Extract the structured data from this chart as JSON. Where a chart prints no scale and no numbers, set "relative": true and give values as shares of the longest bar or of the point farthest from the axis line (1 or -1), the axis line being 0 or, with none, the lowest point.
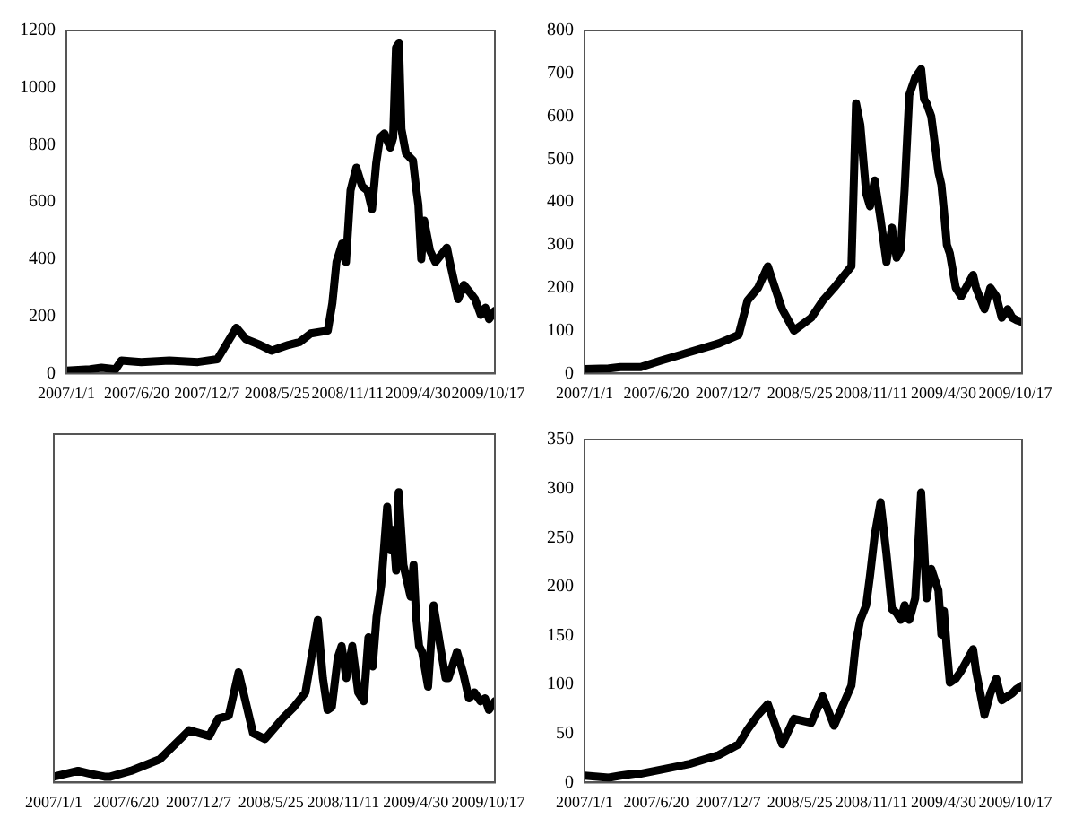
{
  "chart_data": [
    {
      "type": "line",
      "color": "#000000",
      "x": [
        "2007-01-01",
        "2007-02-27",
        "2007-03-27",
        "2007-04-30",
        "2007-05-14",
        "2007-07-01",
        "2007-09-07",
        "2007-11-15",
        "2008-01-01",
        "2008-01-22",
        "2008-02-16",
        "2008-03-10",
        "2008-04-13",
        "2008-05-11",
        "2008-06-21",
        "2008-07-18",
        "2008-08-14",
        "2008-09-24",
        "2008-10-05",
        "2008-10-15",
        "2008-10-29",
        "2008-11-07",
        "2008-11-18",
        "2008-12-02",
        "2008-12-16",
        "2008-12-29",
        "2009-01-09",
        "2009-01-19",
        "2009-01-28",
        "2009-02-08",
        "2009-02-22",
        "2009-03-01",
        "2009-03-08",
        "2009-03-15",
        "2009-03-21",
        "2009-04-01",
        "2009-04-18",
        "2009-04-25",
        "2009-05-01",
        "2009-05-08",
        "2009-05-15",
        "2009-05-29",
        "2009-06-11",
        "2009-07-09",
        "2009-07-16",
        "2009-08-05",
        "2009-08-19",
        "2009-09-02",
        "2009-09-15",
        "2009-09-29",
        "2009-10-10",
        "2009-10-19",
        "2009-11-02"
      ],
      "values": [
        10,
        15,
        20,
        15,
        45,
        40,
        45,
        40,
        50,
        100,
        160,
        120,
        100,
        80,
        100,
        110,
        140,
        150,
        245,
        390,
        455,
        390,
        640,
        720,
        655,
        640,
        575,
        735,
        825,
        840,
        790,
        825,
        1140,
        1155,
        855,
        770,
        745,
        655,
        590,
        400,
        535,
        430,
        390,
        440,
        390,
        260,
        310,
        285,
        260,
        205,
        230,
        190,
        220
      ],
      "xlim": [
        "2007-01-01",
        "2009-11-02"
      ],
      "xticks": [
        {
          "value": "2007-01-01",
          "label": "2007/1/1"
        },
        {
          "value": "2007-06-20",
          "label": "2007/6/20"
        },
        {
          "value": "2007-12-07",
          "label": "2007/12/7"
        },
        {
          "value": "2008-05-25",
          "label": "2008/5/25"
        },
        {
          "value": "2008-11-11",
          "label": "2008/11/11"
        },
        {
          "value": "2009-04-30",
          "label": "2009/4/30"
        },
        {
          "value": "2009-10-17",
          "label": "2009/10/17"
        }
      ],
      "ylim": [
        0,
        1200
      ],
      "yticks": [
        0,
        200,
        400,
        600,
        800,
        1000,
        1200
      ]
    },
    {
      "type": "line",
      "color": "#000000",
      "x": [
        "2007-01-01",
        "2007-02-27",
        "2007-03-27",
        "2007-04-30",
        "2007-05-14",
        "2007-07-01",
        "2007-09-07",
        "2007-11-15",
        "2008-01-01",
        "2008-01-22",
        "2008-02-16",
        "2008-03-10",
        "2008-04-13",
        "2008-05-11",
        "2008-06-21",
        "2008-07-18",
        "2008-08-14",
        "2008-09-24",
        "2008-10-05",
        "2008-10-15",
        "2008-10-29",
        "2008-11-07",
        "2008-11-18",
        "2008-12-02",
        "2008-12-16",
        "2008-12-29",
        "2009-01-09",
        "2009-01-19",
        "2009-01-28",
        "2009-02-08",
        "2009-02-22",
        "2009-03-01",
        "2009-03-08",
        "2009-03-15",
        "2009-03-21",
        "2009-04-01",
        "2009-04-18",
        "2009-04-25",
        "2009-05-01",
        "2009-05-08",
        "2009-05-15",
        "2009-05-29",
        "2009-06-11",
        "2009-07-09",
        "2009-07-16",
        "2009-08-05",
        "2009-08-19",
        "2009-09-02",
        "2009-09-15",
        "2009-09-29",
        "2009-10-10",
        "2009-10-19",
        "2009-11-02"
      ],
      "values": [
        10,
        12,
        15,
        15,
        15,
        30,
        50,
        70,
        90,
        170,
        200,
        250,
        150,
        100,
        130,
        170,
        200,
        250,
        630,
        580,
        420,
        390,
        450,
        360,
        260,
        340,
        270,
        290,
        430,
        650,
        690,
        700,
        710,
        640,
        630,
        600,
        470,
        440,
        380,
        300,
        280,
        200,
        180,
        230,
        200,
        150,
        200,
        180,
        130,
        150,
        130,
        125,
        120
      ],
      "xlim": [
        "2007-01-01",
        "2009-11-02"
      ],
      "xticks": [
        {
          "value": "2007-01-01",
          "label": "2007/1/1"
        },
        {
          "value": "2007-06-20",
          "label": "2007/6/20"
        },
        {
          "value": "2007-12-07",
          "label": "2007/12/7"
        },
        {
          "value": "2008-05-25",
          "label": "2008/5/25"
        },
        {
          "value": "2008-11-11",
          "label": "2008/11/11"
        },
        {
          "value": "2009-04-30",
          "label": "2009/4/30"
        },
        {
          "value": "2009-10-17",
          "label": "2009/10/17"
        }
      ],
      "ylim": [
        0,
        800
      ],
      "yticks": [
        0,
        100,
        200,
        300,
        400,
        500,
        600,
        700,
        800
      ]
    },
    {
      "type": "line",
      "color": "#000000",
      "relative": true,
      "x": [
        "2007-01-01",
        "2007-02-27",
        "2007-03-27",
        "2007-04-30",
        "2007-05-14",
        "2007-07-01",
        "2007-09-07",
        "2007-11-15",
        "2008-01-01",
        "2008-01-22",
        "2008-02-16",
        "2008-03-10",
        "2008-04-13",
        "2008-05-11",
        "2008-06-21",
        "2008-07-18",
        "2008-08-14",
        "2008-09-12",
        "2008-09-24",
        "2008-10-05",
        "2008-10-15",
        "2008-10-29",
        "2008-11-07",
        "2008-11-18",
        "2008-12-02",
        "2008-12-16",
        "2008-12-29",
        "2009-01-09",
        "2009-01-19",
        "2009-01-28",
        "2009-02-08",
        "2009-02-22",
        "2009-03-01",
        "2009-03-08",
        "2009-03-15",
        "2009-03-21",
        "2009-04-01",
        "2009-04-18",
        "2009-04-25",
        "2009-05-01",
        "2009-05-08",
        "2009-05-15",
        "2009-05-29",
        "2009-06-11",
        "2009-07-09",
        "2009-07-16",
        "2009-08-05",
        "2009-08-19",
        "2009-09-02",
        "2009-09-15",
        "2009-09-29",
        "2009-10-10",
        "2009-10-19",
        "2009-11-02"
      ],
      "values": [
        0.02,
        0.04,
        0.03,
        0.02,
        0.02,
        0.04,
        0.08,
        0.18,
        0.16,
        0.22,
        0.23,
        0.38,
        0.17,
        0.15,
        0.22,
        0.26,
        0.31,
        0.56,
        0.36,
        0.25,
        0.26,
        0.43,
        0.47,
        0.36,
        0.47,
        0.31,
        0.28,
        0.5,
        0.4,
        0.57,
        0.68,
        0.95,
        0.8,
        0.87,
        0.73,
        1,
        0.75,
        0.64,
        0.75,
        0.57,
        0.47,
        0.45,
        0.33,
        0.61,
        0.36,
        0.36,
        0.45,
        0.38,
        0.29,
        0.31,
        0.28,
        0.29,
        0.25,
        0.28
      ],
      "xlim": [
        "2007-01-01",
        "2009-11-02"
      ],
      "xticks": [
        {
          "value": "2007-01-01",
          "label": "2007/1/1"
        },
        {
          "value": "2007-06-20",
          "label": "2007/6/20"
        },
        {
          "value": "2007-12-07",
          "label": "2007/12/7"
        },
        {
          "value": "2008-05-25",
          "label": "2008/5/25"
        },
        {
          "value": "2008-11-11",
          "label": "2008/11/11"
        },
        {
          "value": "2009-04-30",
          "label": "2009/4/30"
        },
        {
          "value": "2009-10-17",
          "label": "2009/10/17"
        }
      ]
    },
    {
      "type": "line",
      "color": "#000000",
      "x": [
        "2007-01-01",
        "2007-02-27",
        "2007-03-27",
        "2007-04-30",
        "2007-05-14",
        "2007-07-01",
        "2007-09-07",
        "2007-11-15",
        "2008-01-01",
        "2008-01-22",
        "2008-02-16",
        "2008-03-10",
        "2008-04-13",
        "2008-05-11",
        "2008-06-21",
        "2008-07-18",
        "2008-08-14",
        "2008-09-24",
        "2008-10-05",
        "2008-10-15",
        "2008-10-29",
        "2008-11-07",
        "2008-11-18",
        "2008-12-02",
        "2008-12-16",
        "2008-12-29",
        "2009-01-09",
        "2009-01-19",
        "2009-01-28",
        "2009-02-08",
        "2009-02-22",
        "2009-03-01",
        "2009-03-08",
        "2009-03-15",
        "2009-03-21",
        "2009-04-01",
        "2009-04-18",
        "2009-04-25",
        "2009-05-01",
        "2009-05-08",
        "2009-05-15",
        "2009-05-29",
        "2009-06-11",
        "2009-07-09",
        "2009-07-16",
        "2009-08-05",
        "2009-08-19",
        "2009-09-02",
        "2009-09-15",
        "2009-09-29",
        "2009-10-10",
        "2009-10-19",
        "2009-11-02"
      ],
      "values": [
        7,
        5,
        7,
        9,
        9,
        13,
        19,
        28,
        39,
        54,
        69,
        80,
        39,
        65,
        61,
        88,
        58,
        99,
        144,
        166,
        181,
        211,
        252,
        286,
        233,
        177,
        173,
        166,
        181,
        166,
        188,
        241,
        296,
        241,
        188,
        218,
        196,
        151,
        175,
        136,
        102,
        106,
        114,
        136,
        114,
        69,
        91,
        106,
        84,
        88,
        91,
        95,
        99
      ],
      "xlim": [
        "2007-01-01",
        "2009-11-02"
      ],
      "xticks": [
        {
          "value": "2007-01-01",
          "label": "2007/1/1"
        },
        {
          "value": "2007-06-20",
          "label": "2007/6/20"
        },
        {
          "value": "2007-12-07",
          "label": "2007/12/7"
        },
        {
          "value": "2008-05-25",
          "label": "2008/5/25"
        },
        {
          "value": "2008-11-11",
          "label": "2008/11/11"
        },
        {
          "value": "2009-04-30",
          "label": "2009/4/30"
        },
        {
          "value": "2009-10-17",
          "label": "2009/10/17"
        }
      ],
      "ylim": [
        0,
        350
      ],
      "yticks": [
        0,
        50,
        100,
        150,
        200,
        250,
        300,
        350
      ]
    }
  ]
}
